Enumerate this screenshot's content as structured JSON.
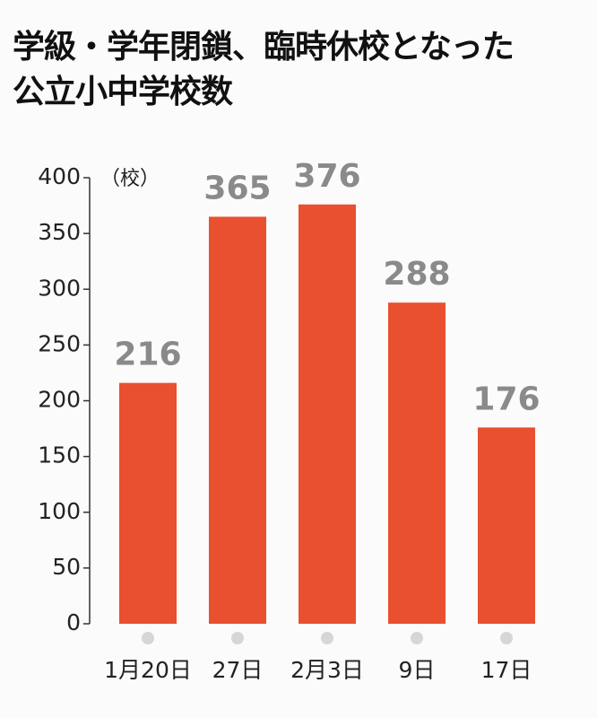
{
  "chart_data": {
    "type": "bar",
    "title": "学級・学年閉鎖、臨時休校となった\n公立小中学校数",
    "y_label": "（校）",
    "categories": [
      "1月20日",
      "27日",
      "2月3日",
      "9日",
      "17日"
    ],
    "values": [
      216,
      365,
      376,
      288,
      176
    ],
    "color": "#e8502f",
    "ylim": [
      0,
      400
    ],
    "yticks": [
      0,
      50,
      100,
      150,
      200,
      250,
      300,
      350,
      400
    ]
  }
}
